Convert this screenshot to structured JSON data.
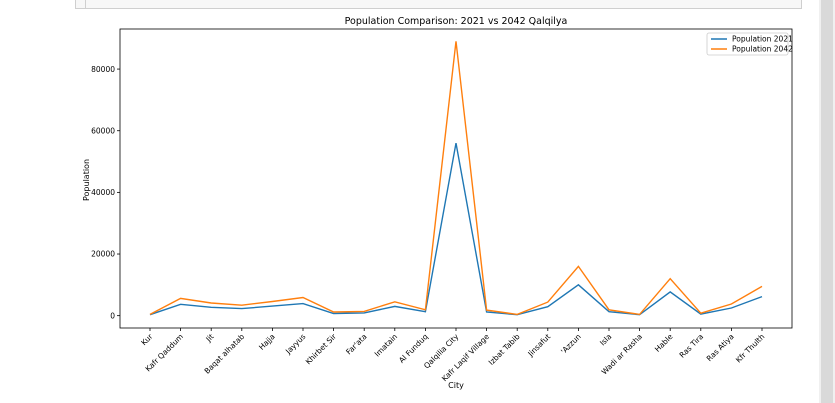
{
  "chart_data": {
    "type": "line",
    "title": "Population Comparison: 2021 vs 2042 Qalqilya",
    "xlabel": "City",
    "ylabel": "Population",
    "ylim": [
      -4000,
      93000
    ],
    "yticks": [
      0,
      20000,
      40000,
      60000,
      80000
    ],
    "categories": [
      "Kur",
      "Kafr Qaddum",
      "Jit",
      "Baqat alhatab",
      "Hajja",
      "Jayyus",
      "Khirbet Sir",
      "Far'ata",
      "Imatain",
      "Al Funduq",
      "Qalqilia City",
      "Kafr Laqif Village",
      "Izbat Tabib",
      "Jinsafut",
      "'Azzun",
      "Isla",
      "Wadi ar Rasha",
      "Hable",
      "Ras Tira",
      "Ras Atiya",
      "Kfr Thulth"
    ],
    "series": [
      {
        "name": "Population 2021",
        "color": "#1f77b4",
        "values": [
          300,
          3700,
          2700,
          2300,
          3100,
          3900,
          700,
          900,
          3000,
          1300,
          56000,
          1200,
          300,
          2900,
          10000,
          1300,
          300,
          7700,
          500,
          2500,
          6200
        ]
      },
      {
        "name": "Population 2042",
        "color": "#ff7f0e",
        "values": [
          400,
          5600,
          4100,
          3400,
          4600,
          5900,
          1200,
          1400,
          4500,
          1900,
          89000,
          1800,
          400,
          4400,
          16000,
          1900,
          400,
          12000,
          800,
          3800,
          9500
        ]
      }
    ],
    "grid": false,
    "legend": "top-right"
  }
}
